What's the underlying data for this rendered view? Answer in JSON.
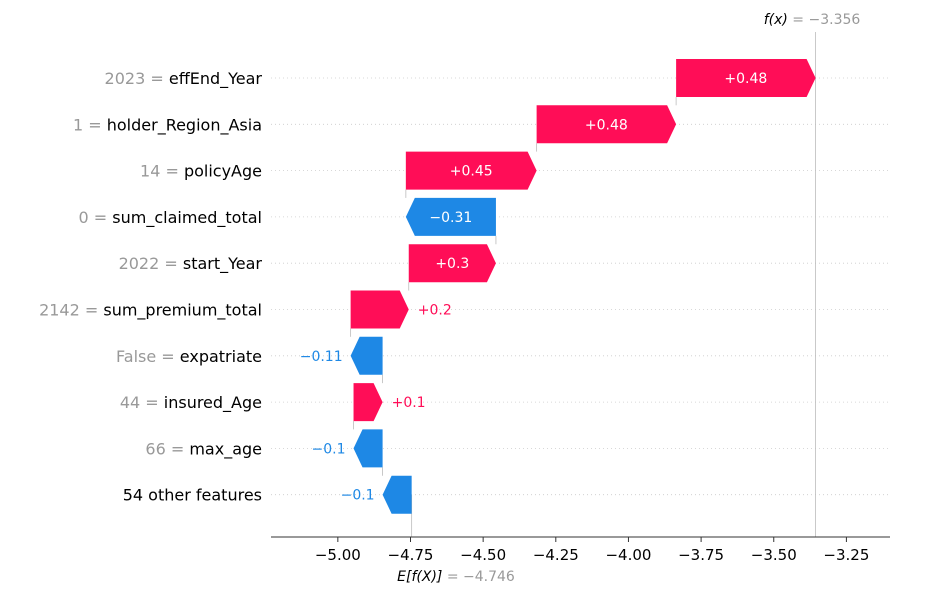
{
  "chart_data": {
    "type": "waterfall",
    "fx": {
      "label_prefix": "f(x)",
      "label_eq": " = ",
      "value_text": "−3.356",
      "value": -3.356
    },
    "ex": {
      "label_prefix": "E[f(X)]",
      "label_eq": " = ",
      "value_text": "−4.746",
      "value": -4.746
    },
    "xlim": [
      -5.23,
      -3.1
    ],
    "xticks": [
      -5.0,
      -4.75,
      -4.5,
      -4.25,
      -4.0,
      -3.75,
      -3.5,
      -3.25
    ],
    "xtick_labels": [
      "−5.00",
      "−4.75",
      "−4.50",
      "−4.25",
      "−4.00",
      "−3.75",
      "−3.50",
      "−3.25"
    ],
    "grid": "dotted horizontal row guides",
    "colors": {
      "positive": "#ff0d57",
      "negative": "#1e88e5",
      "value_text": "#999999",
      "axis": "#333333"
    },
    "rows": [
      {
        "feature_value": "2023",
        "feature": "effEnd_Year",
        "label": "+0.48",
        "value": 0.48,
        "start": -3.836,
        "end": -3.356
      },
      {
        "feature_value": "1",
        "feature": "holder_Region_Asia",
        "label": "+0.48",
        "value": 0.48,
        "start": -4.316,
        "end": -3.836
      },
      {
        "feature_value": "14",
        "feature": "policyAge",
        "label": "+0.45",
        "value": 0.45,
        "start": -4.766,
        "end": -4.316
      },
      {
        "feature_value": "0",
        "feature": "sum_claimed_total",
        "label": "−0.31",
        "value": -0.31,
        "start": -4.456,
        "end": -4.766
      },
      {
        "feature_value": "2022",
        "feature": "start_Year",
        "label": "+0.3",
        "value": 0.3,
        "start": -4.756,
        "end": -4.456
      },
      {
        "feature_value": "2142",
        "feature": "sum_premium_total",
        "label": "+0.2",
        "value": 0.2,
        "start": -4.956,
        "end": -4.756
      },
      {
        "feature_value": "False",
        "feature": "expatriate",
        "label": "−0.11",
        "value": -0.11,
        "start": -4.846,
        "end": -4.956
      },
      {
        "feature_value": "44",
        "feature": "insured_Age",
        "label": "+0.1",
        "value": 0.1,
        "start": -4.946,
        "end": -4.846
      },
      {
        "feature_value": "66",
        "feature": "max_age",
        "label": "−0.1",
        "value": -0.1,
        "start": -4.846,
        "end": -4.946
      },
      {
        "feature_value": "",
        "feature": "54 other features",
        "label": "−0.1",
        "value": -0.1,
        "start": -4.746,
        "end": -4.846
      }
    ]
  }
}
